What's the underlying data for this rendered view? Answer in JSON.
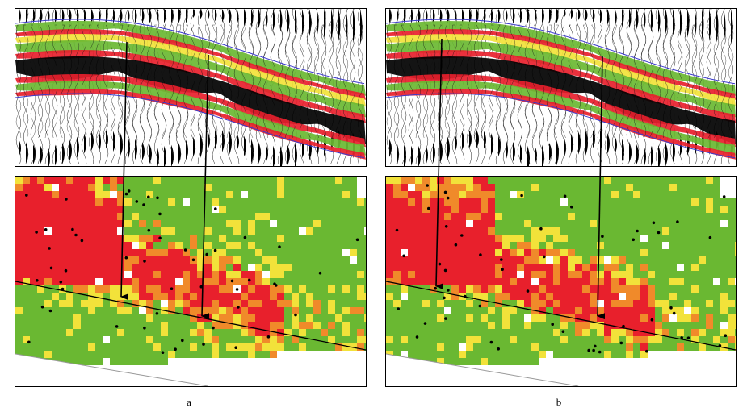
{
  "figure": {
    "captions": {
      "left": "a",
      "right": "b"
    }
  },
  "colors": {
    "red": "#e8202c",
    "orange": "#f08a2a",
    "yellow": "#f2e23a",
    "green": "#6ab832",
    "black": "#000000",
    "white": "#ffffff",
    "horizon_blue": "#3a3acc"
  },
  "panels": [
    {
      "id": "a",
      "section": "seismic-section",
      "map": "attribute-map"
    },
    {
      "id": "b",
      "section": "seismic-section",
      "map": "attribute-map"
    }
  ]
}
